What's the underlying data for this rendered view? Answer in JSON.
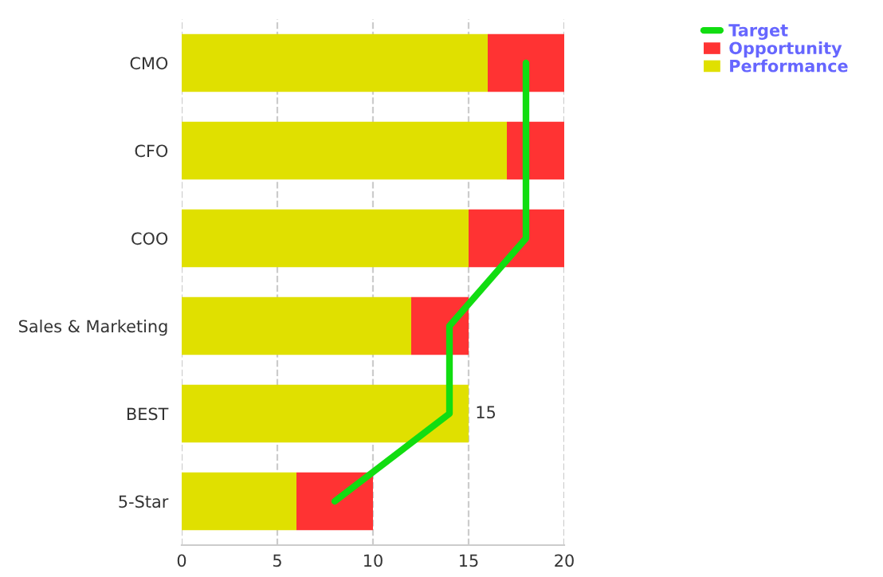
{
  "chart_data": {
    "type": "bar",
    "orientation": "horizontal",
    "stacked": true,
    "categories": [
      "CMO",
      "CFO",
      "COO",
      "Sales & Marketing",
      "BEST",
      "5-Star"
    ],
    "series": [
      {
        "name": "Performance",
        "color": "#e0e000",
        "values": [
          16,
          17,
          15,
          12,
          15,
          6
        ],
        "value_labels": [
          null,
          null,
          null,
          null,
          "15",
          null
        ]
      },
      {
        "name": "Opportunity",
        "color": "#ff3333",
        "values": [
          4,
          3,
          5,
          3,
          0,
          4
        ]
      },
      {
        "name": "Target",
        "type": "line",
        "color": "#11dd11",
        "values": [
          18,
          18,
          18,
          14,
          14,
          8
        ]
      }
    ],
    "xlim": [
      0,
      20
    ],
    "xticks": [
      0,
      5,
      10,
      15,
      20
    ],
    "grid": "x",
    "legend": "top right",
    "marker": "none",
    "line_style": "solid"
  }
}
